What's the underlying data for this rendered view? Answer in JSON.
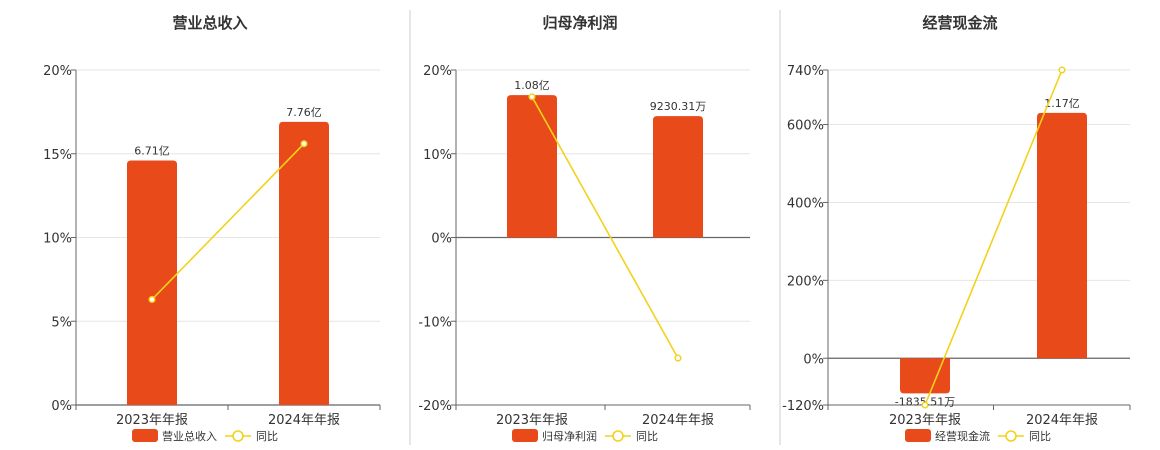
{
  "colors": {
    "bar": "#E84A1A",
    "line": "#F2D21C",
    "grid": "#E6E6E6",
    "axis": "#666666",
    "divider": "#CCCCCC"
  },
  "chart_data": [
    {
      "type": "bar",
      "title": "营业总收入",
      "categories": [
        "2023年年报",
        "2024年年报"
      ],
      "series": [
        {
          "name": "营业总收入",
          "type": "bar",
          "values": [
            14.6,
            16.9
          ],
          "labels": [
            "6.71亿",
            "7.76亿"
          ]
        },
        {
          "name": "同比",
          "type": "line",
          "values": [
            6.3,
            15.6
          ]
        }
      ],
      "yticks": [
        "0%",
        "5%",
        "10%",
        "15%",
        "20%"
      ],
      "yvals": [
        0,
        5,
        10,
        15,
        20
      ],
      "ylim": [
        0,
        20
      ],
      "legend": [
        "营业总收入",
        "同比"
      ]
    },
    {
      "type": "bar",
      "title": "归母净利润",
      "categories": [
        "2023年年报",
        "2024年年报"
      ],
      "series": [
        {
          "name": "归母净利润",
          "type": "bar",
          "values": [
            17.0,
            14.5
          ],
          "labels": [
            "1.08亿",
            "9230.31万"
          ]
        },
        {
          "name": "同比",
          "type": "line",
          "values": [
            16.8,
            -14.4
          ]
        }
      ],
      "yticks": [
        "-20%",
        "-10%",
        "0%",
        "10%",
        "20%"
      ],
      "yvals": [
        -20,
        -10,
        0,
        10,
        20
      ],
      "ylim": [
        -20,
        20
      ],
      "legend": [
        "归母净利润",
        "同比"
      ]
    },
    {
      "type": "bar",
      "title": "经营现金流",
      "categories": [
        "2023年年报",
        "2024年年报"
      ],
      "series": [
        {
          "name": "经营现金流",
          "type": "bar",
          "values": [
            -90,
            630
          ],
          "labels": [
            "-1835.51万",
            "1.17亿"
          ]
        },
        {
          "name": "同比",
          "type": "line",
          "values": [
            -120,
            740
          ]
        }
      ],
      "yticks": [
        "-120%",
        "0%",
        "200%",
        "400%",
        "600%",
        "740%"
      ],
      "yvals": [
        -120,
        0,
        200,
        400,
        600,
        740
      ],
      "ylim": [
        -120,
        740
      ],
      "legend": [
        "经营现金流",
        "同比"
      ]
    }
  ]
}
